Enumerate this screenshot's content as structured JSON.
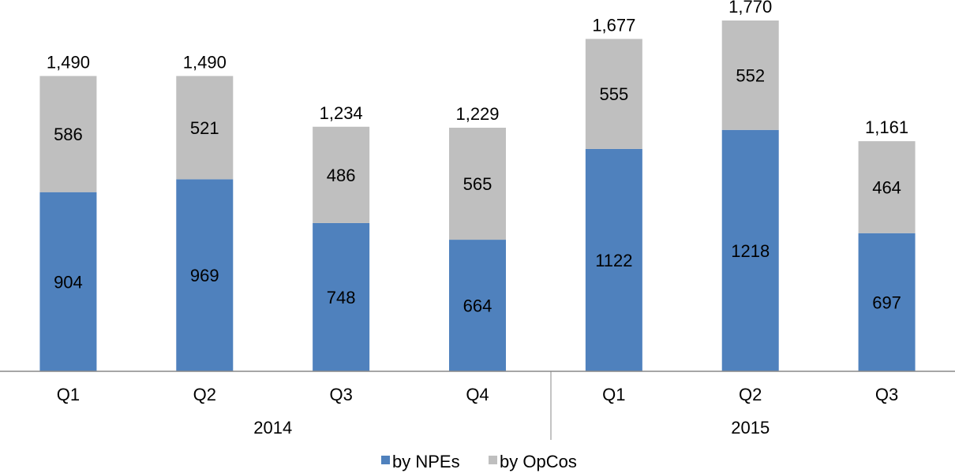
{
  "chart_data": {
    "type": "bar",
    "stacked": true,
    "categories": [
      "Q1",
      "Q2",
      "Q3",
      "Q4",
      "Q1",
      "Q2",
      "Q3"
    ],
    "groups": [
      {
        "label": "2014",
        "categories": [
          "Q1",
          "Q2",
          "Q3",
          "Q4"
        ]
      },
      {
        "label": "2015",
        "categories": [
          "Q1",
          "Q2",
          "Q3"
        ]
      }
    ],
    "series": [
      {
        "name": "by NPEs",
        "color": "#4F81BD",
        "values": [
          904,
          969,
          748,
          664,
          1122,
          1218,
          697
        ],
        "labels": [
          "904",
          "969",
          "748",
          "664",
          "1122",
          "1218",
          "697"
        ]
      },
      {
        "name": "by OpCos",
        "color": "#BFBFBF",
        "values": [
          586,
          521,
          486,
          565,
          555,
          552,
          464
        ],
        "labels": [
          "586",
          "521",
          "486",
          "565",
          "555",
          "552",
          "464"
        ]
      }
    ],
    "totals": [
      1490,
      1490,
      1234,
      1229,
      1677,
      1770,
      1161
    ],
    "total_labels": [
      "1,490",
      "1,490",
      "1,234",
      "1,229",
      "1,677",
      "1,770",
      "1,161"
    ],
    "ylim": [
      0,
      1770
    ],
    "grid": false,
    "legend_position": "bottom"
  }
}
